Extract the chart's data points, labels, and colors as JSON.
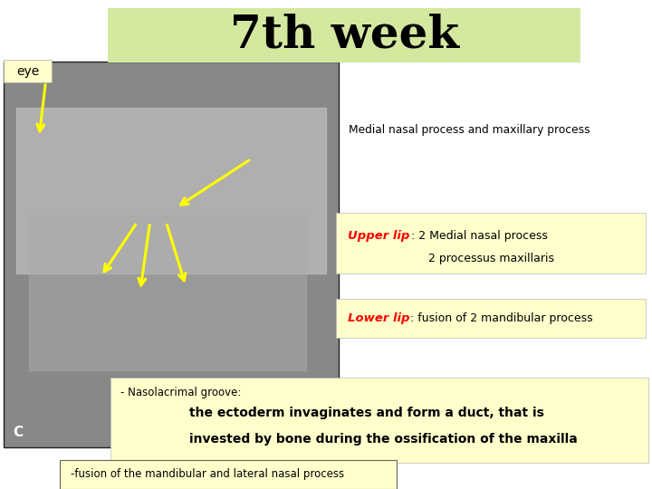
{
  "title": "7th week",
  "title_bg": "#d4e8a0",
  "title_fontsize": 36,
  "background_color": "#ffffff",
  "eye_label": "eye",
  "eye_label_bg": "#ffffcc",
  "medial_label": "Medial nasal process and maxillary process",
  "upper_lip_label": "Upper lip",
  "upper_lip_text1": ": 2 Medial nasal process",
  "upper_lip_text2": "2 processus maxillaris",
  "upper_lip_bg": "#ffffcc",
  "lower_lip_label": "Lower lip",
  "lower_lip_text": ": fusion of 2 mandibular process",
  "lower_lip_bg": "#ffffcc",
  "naso_label": "- Nasolacrimal groove:",
  "naso_body1": "the ectoderm invaginates and form a duct, that is",
  "naso_body2": "invested by bone during the ossification of the maxilla",
  "naso_bg": "#ffffcc",
  "fusion_label": "-fusion of the mandibular and lateral nasal process",
  "fusion_bg": "#ffffcc",
  "img_bg": "#888888",
  "img_mid": "#aaaaaa",
  "img_light": "#c0c0c0"
}
